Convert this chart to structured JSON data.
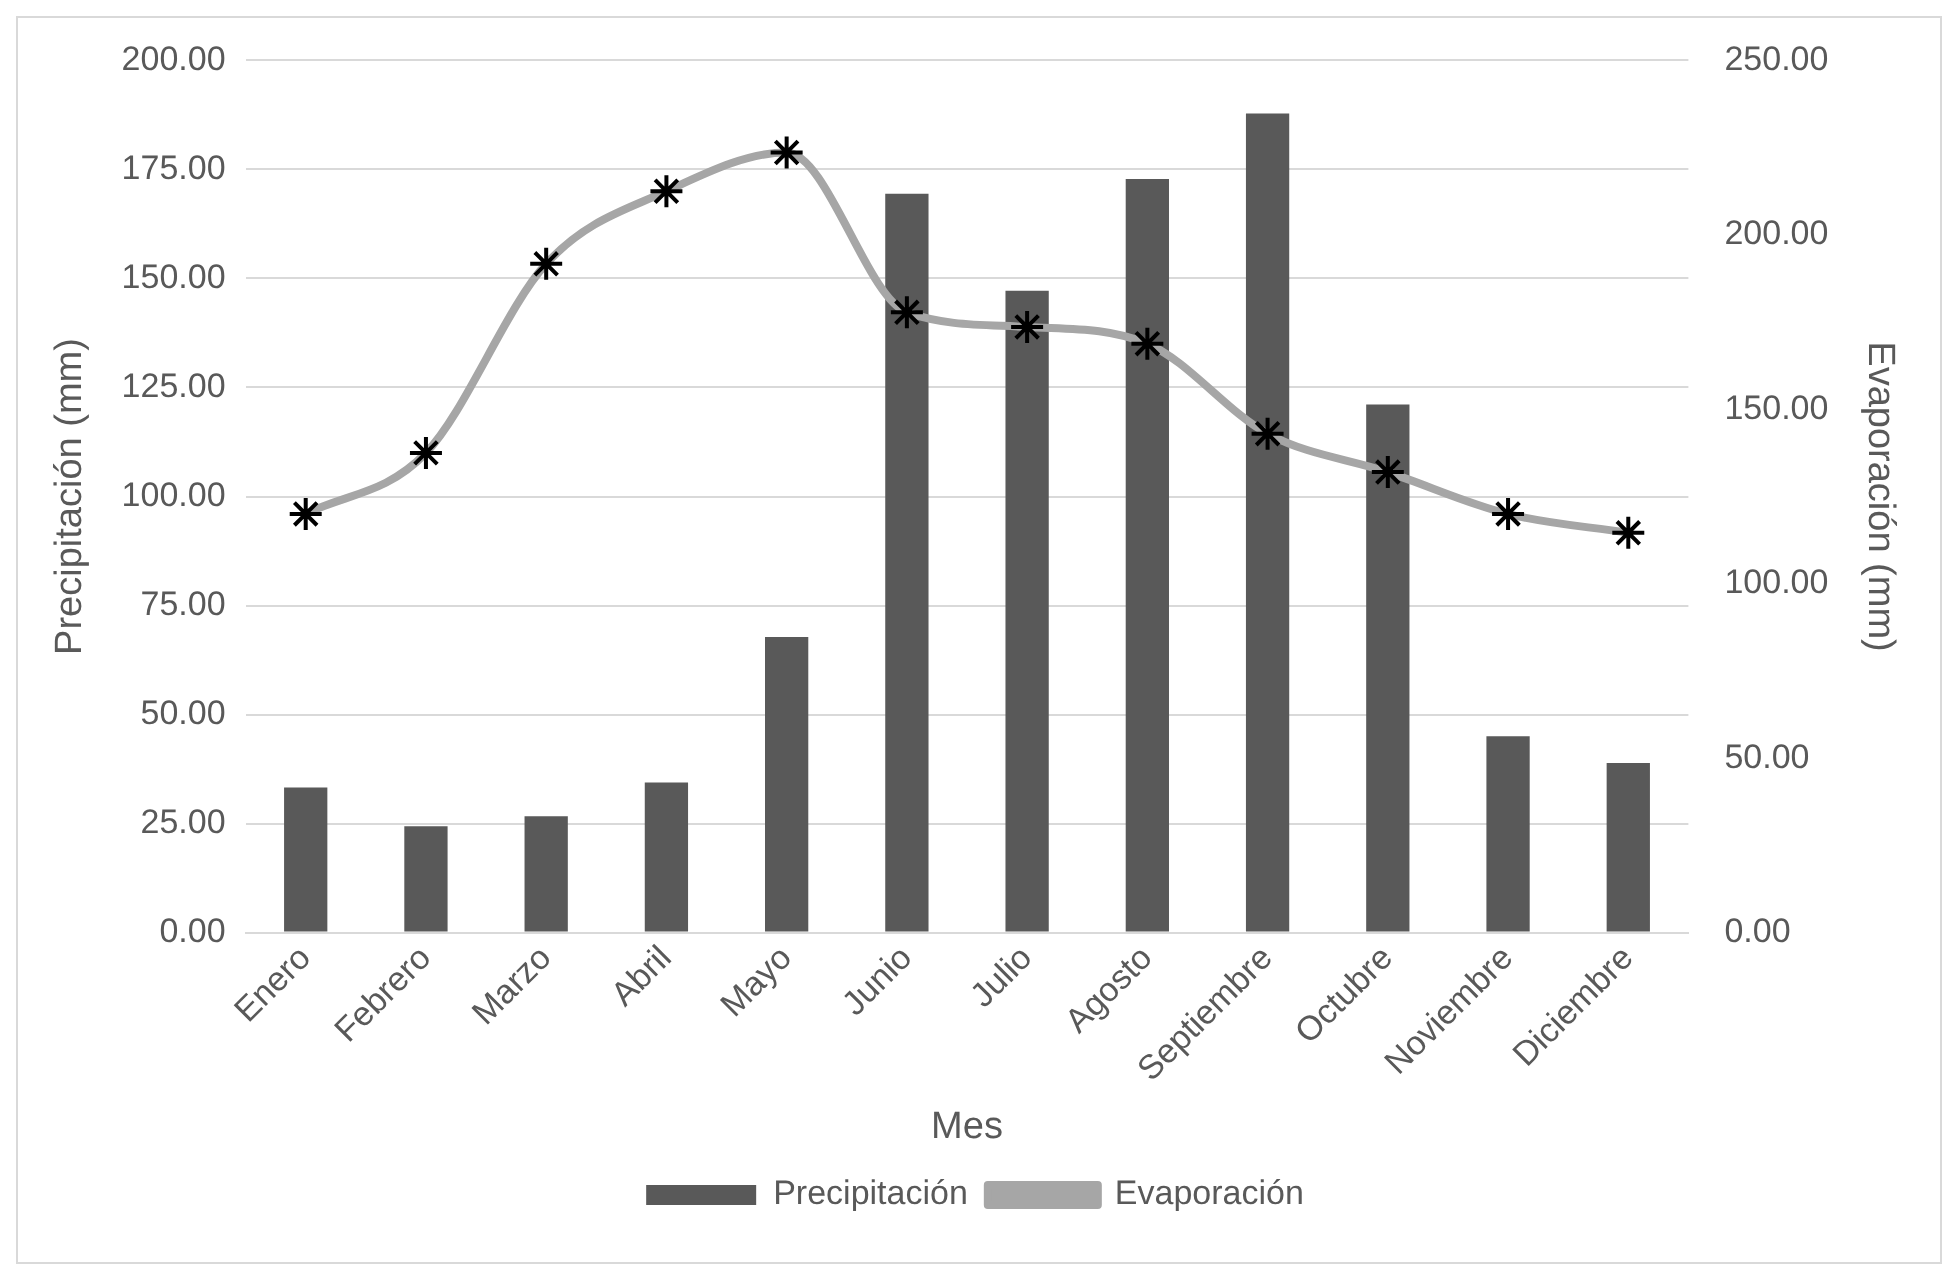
{
  "chart_data": {
    "type": "bar",
    "xlabel": "Mes",
    "ylabel": "Precipitación (mm)",
    "y2label": "Evaporación (mm)",
    "categories": [
      "Enero",
      "Febrero",
      "Marzo",
      "Abril",
      "Mayo",
      "Junio",
      "Julio",
      "Agosto",
      "Septiembre",
      "Octubre",
      "Noviembre",
      "Diciembre"
    ],
    "series": [
      {
        "name": "Precipitación",
        "color": "#595959",
        "values": [
          33.3,
          24.4,
          26.7,
          34.4,
          67.8,
          169.4,
          147.2,
          172.8,
          187.8,
          121.1,
          45,
          38.9
        ]
      },
      {
        "name": "Evaporación",
        "type": "line",
        "axis": "y2",
        "color": "#a6a6a6",
        "marker": "cross",
        "values": [
          120,
          137.5,
          191.7,
          212.5,
          223.6,
          177.8,
          173.6,
          168.8,
          143,
          132,
          120,
          114.6
        ]
      }
    ],
    "ylim": [
      0,
      200
    ],
    "yticks": [
      {
        "value": 0,
        "label": "0.00"
      },
      {
        "value": 25,
        "label": "25.00"
      },
      {
        "value": 50,
        "label": "50.00"
      },
      {
        "value": 75,
        "label": "75.00"
      },
      {
        "value": 100,
        "label": "100.00"
      },
      {
        "value": 125,
        "label": "125.00"
      },
      {
        "value": 150,
        "label": "150.00"
      },
      {
        "value": 175,
        "label": "175.00"
      },
      {
        "value": 200,
        "label": "200.00"
      }
    ],
    "y2lim": [
      0,
      250
    ],
    "y2ticks": [
      {
        "value": 0,
        "label": "0.00"
      },
      {
        "value": 50,
        "label": "50.00"
      },
      {
        "value": 100,
        "label": "100.00"
      },
      {
        "value": 150,
        "label": "150.00"
      },
      {
        "value": 200,
        "label": "200.00"
      },
      {
        "value": 250,
        "label": "250.00"
      }
    ],
    "grid": "y",
    "legend": "bottom"
  }
}
